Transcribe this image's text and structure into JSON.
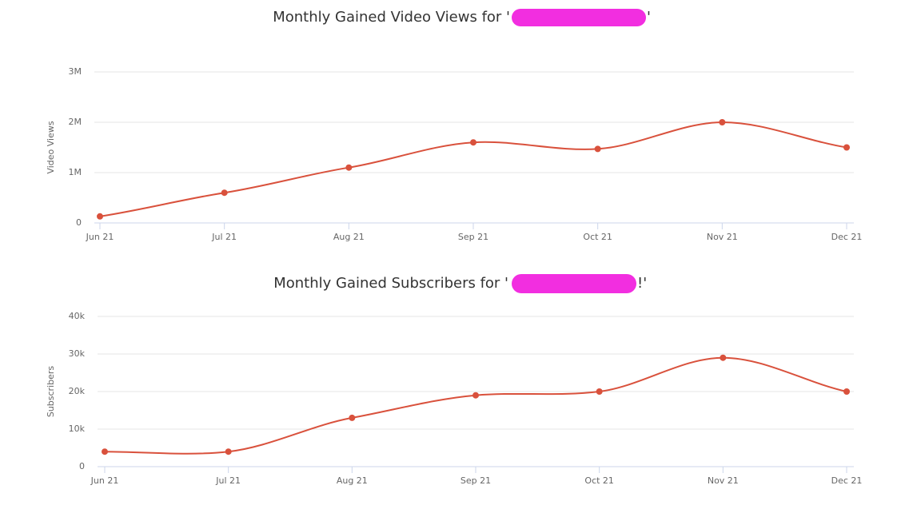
{
  "chart_data": [
    {
      "type": "line",
      "title": "Monthly Gained Video Views for '",
      "title_end": "'",
      "y_label": "Video Views",
      "categories": [
        "Jun 21",
        "Jul 21",
        "Aug 21",
        "Sep 21",
        "Oct 21",
        "Nov 21",
        "Dec 21"
      ],
      "series": [
        {
          "name": "Video Views",
          "color": "#d9513c",
          "values": [
            130000,
            600000,
            1100000,
            1600000,
            1470000,
            2000000,
            1500000
          ]
        }
      ],
      "ylim": [
        0,
        3000000
      ],
      "yticks": [
        0,
        {
          "value": 1000000,
          "label": "1M"
        },
        {
          "value": 2000000,
          "label": "2M"
        },
        {
          "value": 3000000,
          "label": "3M"
        }
      ],
      "grid": true
    },
    {
      "type": "line",
      "title": "Monthly Gained Subscribers for '",
      "title_end": "!'",
      "y_label": "Subscribers",
      "categories": [
        "Jun 21",
        "Jul 21",
        "Aug 21",
        "Sep 21",
        "Oct 21",
        "Nov 21",
        "Dec 21"
      ],
      "series": [
        {
          "name": "Subscribers",
          "color": "#d9513c",
          "values": [
            4000,
            4000,
            13000,
            19000,
            20000,
            29000,
            20000
          ]
        }
      ],
      "ylim": [
        0,
        40000
      ],
      "yticks": [
        0,
        {
          "value": 10000,
          "label": "10k"
        },
        {
          "value": 20000,
          "label": "20k"
        },
        {
          "value": 30000,
          "label": "30k"
        },
        {
          "value": 40000,
          "label": "40k"
        }
      ],
      "grid": true
    }
  ]
}
